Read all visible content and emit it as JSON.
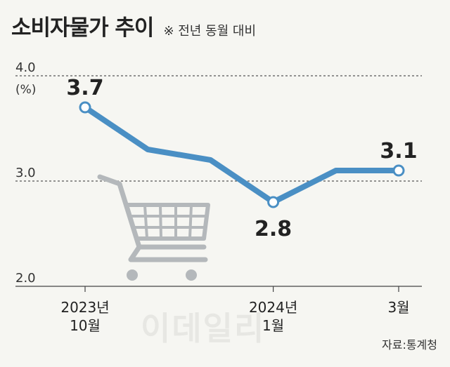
{
  "header": {
    "title": "소비자물가 추이",
    "subtitle": "※ 전년 동월 대비"
  },
  "source": "자료:통계청",
  "watermark": "이데일리",
  "colors": {
    "line": "#4a8fc4",
    "marker_fill": "#ffffff",
    "cart": "#b4b8bb",
    "text": "#222222"
  },
  "chart_data": {
    "type": "line",
    "title": "소비자물가 추이",
    "subtitle": "※ 전년 동월 대비",
    "ylabel": "(%)",
    "ylim": [
      2.0,
      4.0
    ],
    "yticks": [
      {
        "value": 4.0,
        "label": "4.0"
      },
      {
        "value": 3.0,
        "label": "3.0"
      },
      {
        "value": 2.0,
        "label": "2.0"
      }
    ],
    "grid": "dashed lines at 4.0 and 3.0",
    "x_tick_labels": [
      {
        "index": 0,
        "lines": [
          "2023년",
          "10월"
        ]
      },
      {
        "index": 3,
        "lines": [
          "2024년",
          "1월"
        ]
      },
      {
        "index": 5,
        "lines": [
          "3월"
        ]
      }
    ],
    "series": [
      {
        "x": [
          "2023-10",
          "2023-11",
          "2023-12",
          "2024-01",
          "2024-02",
          "2024-03"
        ],
        "values": [
          3.7,
          3.3,
          3.2,
          2.8,
          3.1,
          3.1
        ]
      }
    ],
    "data_labels": [
      {
        "index": 0,
        "text": "3.7"
      },
      {
        "index": 3,
        "text": "2.8"
      },
      {
        "index": 5,
        "text": "3.1"
      }
    ]
  }
}
